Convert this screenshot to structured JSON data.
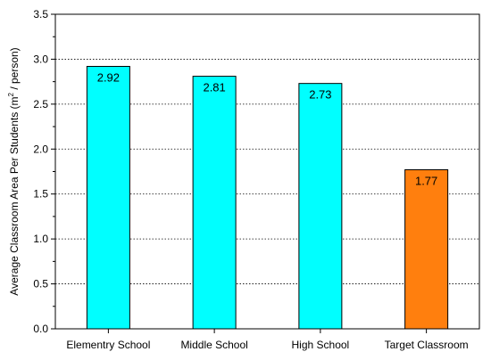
{
  "chart_data": {
    "type": "bar",
    "categories": [
      "Elementry School",
      "Middle School",
      "High School",
      "Target Classroom"
    ],
    "values": [
      2.92,
      2.81,
      2.73,
      1.77
    ],
    "value_labels": [
      "2.92",
      "2.81",
      "2.73",
      "1.77"
    ],
    "colors": [
      "#00FFFF",
      "#00FFFF",
      "#00FFFF",
      "#FF7F0E"
    ],
    "ylabel": {
      "before": "Average Classroom Area Per Students (m",
      "sup": "2",
      "after": " / person)"
    },
    "ylim": [
      0,
      3.5
    ],
    "yticks": [
      0.0,
      0.5,
      1.0,
      1.5,
      2.0,
      2.5,
      3.0,
      3.5
    ],
    "ytick_labels": [
      "0.0",
      "0.5",
      "1.0",
      "1.5",
      "2.0",
      "2.5",
      "3.0",
      "3.5"
    ],
    "grid": "horizontal-dotted",
    "legend": "none"
  }
}
